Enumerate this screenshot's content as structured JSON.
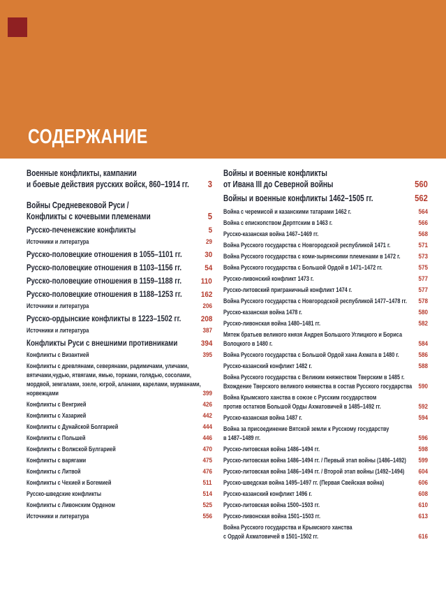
{
  "page": {
    "title": "СОДЕРЖАНИЕ"
  },
  "colors": {
    "header_orange": "#d87c35",
    "corner_square_red": "#8f2022",
    "entry_text": "#232733",
    "page_number_red": "#b53a2c",
    "background": "#ffffff",
    "title_white": "#ffffff"
  },
  "left_column": {
    "rows": [
      {
        "tier": "h1",
        "lines": [
          "Военные конфликты, кампании",
          "и боевые действия русских войск, 860–1914 гг."
        ],
        "page": "3"
      },
      {
        "tier": "h1",
        "lines": [
          "Войны Средневековой Руси /",
          "Конфликты с кочевыми племенами"
        ],
        "page": "5"
      },
      {
        "tier": "med",
        "lines": [
          "Русско-печенежские конфликты"
        ],
        "page": "5"
      },
      {
        "tier": "sm",
        "lines": [
          "Источники и литература"
        ],
        "page": "29"
      },
      {
        "tier": "med",
        "lines": [
          "Русско-половецкие отношения в 1055–1101 гг."
        ],
        "page": "30"
      },
      {
        "tier": "med",
        "lines": [
          "Русско-половецкие отношения в 1103–1156 гг."
        ],
        "page": "54"
      },
      {
        "tier": "med",
        "lines": [
          "Русско-половецкие отношения в 1159–1188 гг."
        ],
        "page": "110"
      },
      {
        "tier": "med",
        "lines": [
          "Русско-половецкие отношения в 1188–1253 гг."
        ],
        "page": "162"
      },
      {
        "tier": "sm",
        "lines": [
          "Источники и литература"
        ],
        "page": "206"
      },
      {
        "tier": "med",
        "lines": [
          "Русско-ордынские конфликты в 1223–1502 гг."
        ],
        "page": "208"
      },
      {
        "tier": "sm",
        "lines": [
          "Источники и литература"
        ],
        "page": "387"
      },
      {
        "tier": "med",
        "lines": [
          "Конфликты Руси с внешними противниками"
        ],
        "page": "394"
      },
      {
        "tier": "sm",
        "lines": [
          "Конфликты с Византией"
        ],
        "page": "395"
      },
      {
        "tier": "sm",
        "lines": [
          "Конфликты с древлянами, северянами, радимичами, уличами,",
          "вятичами,чудью, ятвягами, ямью, торками, голядью, сосолами,",
          "мордвой, земгалами, эзеле, югрой, аланами, карелами, мурманами,",
          "норвежцами"
        ],
        "page": "399"
      },
      {
        "tier": "sm",
        "lines": [
          "Конфликты с Венгрией"
        ],
        "page": "426"
      },
      {
        "tier": "sm",
        "lines": [
          "Конфликты с Хазарией"
        ],
        "page": "442"
      },
      {
        "tier": "sm",
        "lines": [
          "Конфликты с Дунайской Болгарией"
        ],
        "page": "444"
      },
      {
        "tier": "sm",
        "lines": [
          "Конфликты с Польшей"
        ],
        "page": "446"
      },
      {
        "tier": "sm",
        "lines": [
          "Конфликты с Волжской Булгарией"
        ],
        "page": "470"
      },
      {
        "tier": "sm",
        "lines": [
          "Конфликты с варягами"
        ],
        "page": "475"
      },
      {
        "tier": "sm",
        "lines": [
          "Конфликты с Литвой"
        ],
        "page": "476"
      },
      {
        "tier": "sm",
        "lines": [
          "Конфликты с Чехией и Богемией"
        ],
        "page": "511"
      },
      {
        "tier": "sm",
        "lines": [
          "Русско-шведские конфликты"
        ],
        "page": "514"
      },
      {
        "tier": "sm",
        "lines": [
          "Конфликты с Ливонским Орденом"
        ],
        "page": "525"
      },
      {
        "tier": "sm",
        "lines": [
          "Источники и литература"
        ],
        "page": "556"
      }
    ]
  },
  "right_column": {
    "rows": [
      {
        "tier": "h1",
        "lines": [
          "Войны и военные конфликты",
          "от Ивана III до Северной войны"
        ],
        "page": "560"
      },
      {
        "tier": "h1",
        "lines": [
          "Войны и военные конфликты 1462–1505 гг."
        ],
        "page": "562"
      },
      {
        "tier": "sm",
        "lines": [
          "Война с черемисой и казанскими татарами 1462 г."
        ],
        "page": "564"
      },
      {
        "tier": "sm",
        "lines": [
          "Война с епископством Дерптским в 1463 г."
        ],
        "page": "566"
      },
      {
        "tier": "sm",
        "lines": [
          "Русско-казанская война 1467–1469 гг."
        ],
        "page": "568"
      },
      {
        "tier": "sm",
        "lines": [
          "Война Русского государства с Новгородской республикой 1471 г."
        ],
        "page": "571"
      },
      {
        "tier": "sm",
        "lines": [
          "Война Русского государства с коми-зырянскими племенами в 1472 г."
        ],
        "page": "573"
      },
      {
        "tier": "sm",
        "lines": [
          "Война Русского государства с Большой Ордой в 1471–1472 гг."
        ],
        "page": "575"
      },
      {
        "tier": "sm",
        "lines": [
          "Русско-ливонский конфликт 1473 г."
        ],
        "page": "577"
      },
      {
        "tier": "sm",
        "lines": [
          "Русско-литовский приграничный конфликт 1474 г."
        ],
        "page": "577"
      },
      {
        "tier": "sm",
        "lines": [
          "Война Русского государства с Новгородской республикой 1477–1478 гг."
        ],
        "page": "578"
      },
      {
        "tier": "sm",
        "lines": [
          "Русско-казанская война 1478 г."
        ],
        "page": "580"
      },
      {
        "tier": "sm",
        "lines": [
          "Русско-ливонская война 1480–1481 гг."
        ],
        "page": "582"
      },
      {
        "tier": "sm",
        "lines": [
          "Мятеж братьев великого князя Андрея Большого Углицкого и Бориса",
          "Волоцкого в 1480 г."
        ],
        "page": "584"
      },
      {
        "tier": "sm",
        "lines": [
          "Война Русского государства с Большой Ордой хана Ахмата в 1480 г."
        ],
        "page": "586"
      },
      {
        "tier": "sm",
        "lines": [
          "Русско-казанский конфликт 1482 г."
        ],
        "page": "588"
      },
      {
        "tier": "sm",
        "lines": [
          "Война Русского государства с Великим княжеством Тверским в 1485 г.",
          "Вхождение Тверского великого княжества в состав Русского государства"
        ],
        "page": "590"
      },
      {
        "tier": "sm",
        "lines": [
          "Война Крымского ханства в союзе с Русским государством",
          "против остатков Большой Орды Ахматовичей в 1485–1492 гг."
        ],
        "page": "592"
      },
      {
        "tier": "sm",
        "lines": [
          "Русско-казанская война 1487 г."
        ],
        "page": "594"
      },
      {
        "tier": "sm",
        "lines": [
          "Война за присоединение Вятской земли к Русскому государству",
          "в 1487–1489 гг."
        ],
        "page": "596"
      },
      {
        "tier": "sm",
        "lines": [
          "Русско-литовская война 1486–1494 гг."
        ],
        "page": "598"
      },
      {
        "tier": "sm",
        "lines": [
          "Русско-литовская война 1486–1494 гг. / Первый этап войны (1486–1492)"
        ],
        "page": "599"
      },
      {
        "tier": "sm",
        "lines": [
          "Русско-литовская война 1486–1494 гг. / Второй этап войны (1492–1494)"
        ],
        "page": "604"
      },
      {
        "tier": "sm",
        "lines": [
          "Русско-шведская война 1495–1497 гг. (Первая Свейская война)"
        ],
        "page": "606"
      },
      {
        "tier": "sm",
        "lines": [
          "Русско-казанский конфликт 1496 г."
        ],
        "page": "608"
      },
      {
        "tier": "sm",
        "lines": [
          "Русско-литовская война 1500–1503 гг."
        ],
        "page": "610"
      },
      {
        "tier": "sm",
        "lines": [
          "Русско-ливонская война 1501–1503 гг."
        ],
        "page": "613"
      },
      {
        "tier": "sm",
        "lines": [
          "Война Русского государства и Крымского ханства",
          "с Ордой Ахматовичей в 1501–1502 гг."
        ],
        "page": "616"
      }
    ]
  }
}
